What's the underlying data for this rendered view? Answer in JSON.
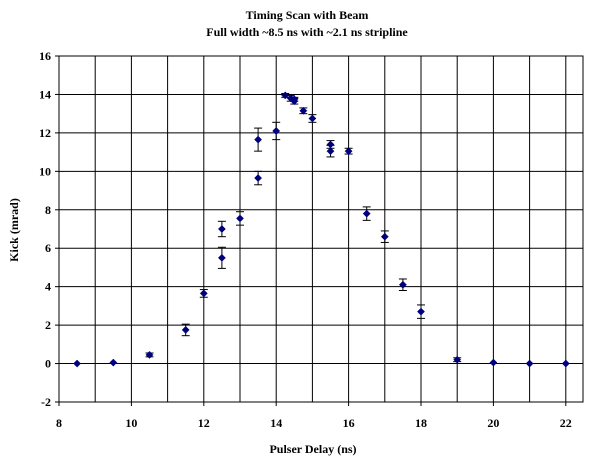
{
  "chart_data": {
    "type": "scatter",
    "title": "Timing Scan with Beam",
    "subtitle": "Full width ~8.5 ns with ~2.1 ns stripline",
    "xlabel": "Pulser Delay (ns)",
    "ylabel": "Kick (mrad)",
    "xlim": [
      8,
      23
    ],
    "ylim": [
      -2,
      16
    ],
    "xticks": [
      "8",
      "10",
      "12",
      "14",
      "16",
      "18",
      "20",
      "22"
    ],
    "yticks": [
      "-2",
      "0",
      "2",
      "4",
      "6",
      "8",
      "10",
      "12",
      "14",
      "16"
    ],
    "grid": true,
    "legend": "none",
    "marker_color": "#00007f",
    "error_bar_color": "#000000",
    "series": [
      {
        "x": [
          8.5,
          9.5,
          10.5,
          11.5,
          12.0,
          12.5,
          12.5,
          13.0,
          13.5,
          13.5,
          14.0,
          14.25,
          14.4,
          14.5,
          14.5,
          14.75,
          15.0,
          15.5,
          15.5,
          16.0,
          16.5,
          17.0,
          17.5,
          18.0,
          19.0,
          20.0,
          21.0,
          22.0
        ],
        "y": [
          0.0,
          0.05,
          0.45,
          1.75,
          3.65,
          5.5,
          7.0,
          7.55,
          9.65,
          11.65,
          12.1,
          13.95,
          13.8,
          13.65,
          13.75,
          13.15,
          12.75,
          11.05,
          11.4,
          11.05,
          7.8,
          6.6,
          4.1,
          2.7,
          0.2,
          0.05,
          0.0,
          0.0
        ],
        "err": [
          0.0,
          0.0,
          0.1,
          0.3,
          0.2,
          0.55,
          0.4,
          0.35,
          0.35,
          0.6,
          0.45,
          0.1,
          0.15,
          0.15,
          0.1,
          0.15,
          0.2,
          0.3,
          0.2,
          0.15,
          0.35,
          0.3,
          0.3,
          0.35,
          0.1,
          0.0,
          0.0,
          0.0
        ]
      }
    ]
  }
}
